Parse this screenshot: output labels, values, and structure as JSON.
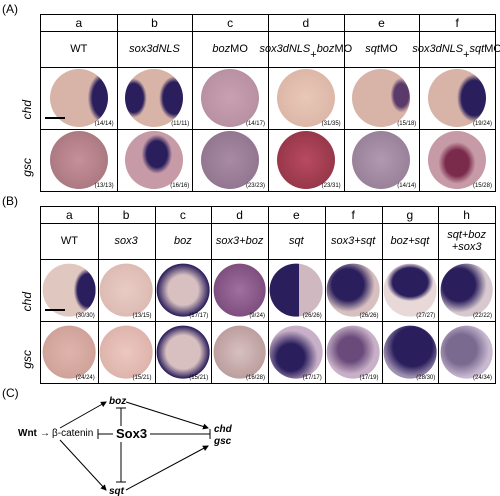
{
  "panel_labels": {
    "A": "(A)",
    "B": "(B)",
    "C": "(C)"
  },
  "panelA": {
    "letters": [
      "a",
      "b",
      "c",
      "d",
      "e",
      "f"
    ],
    "conditions": [
      {
        "parts": [
          {
            "t": "WT",
            "i": false
          }
        ]
      },
      {
        "parts": [
          {
            "t": "sox3dNLS",
            "i": true
          }
        ]
      },
      {
        "parts": [
          {
            "t": "boz",
            "i": true
          },
          {
            "t": "MO",
            "i": false
          }
        ]
      },
      {
        "parts": [
          {
            "t": "sox3dNLS",
            "i": true
          },
          {
            "t": "\n+",
            "i": false
          },
          {
            "t": "boz",
            "i": true
          },
          {
            "t": "MO",
            "i": false
          }
        ]
      },
      {
        "parts": [
          {
            "t": "sqt",
            "i": true
          },
          {
            "t": "MO",
            "i": false
          }
        ]
      },
      {
        "parts": [
          {
            "t": "sox3dNLS",
            "i": true
          },
          {
            "t": "\n+",
            "i": false
          },
          {
            "t": "sqt",
            "i": true
          },
          {
            "t": "MO",
            "i": false
          }
        ]
      }
    ],
    "rows": [
      {
        "label": "chd",
        "counts": [
          "(14/14)",
          "(11/11)",
          "(14/17)",
          "(31/35)",
          "(15/18)",
          "(19/24)"
        ]
      },
      {
        "label": "gsc",
        "counts": [
          "(13/13)",
          "(16/16)",
          "(23/23)",
          "(23/31)",
          "(14/14)",
          "(15/28)"
        ]
      }
    ]
  },
  "panelB": {
    "letters": [
      "a",
      "b",
      "c",
      "d",
      "e",
      "f",
      "g",
      "h"
    ],
    "conditions": [
      {
        "parts": [
          {
            "t": "WT",
            "i": false
          }
        ]
      },
      {
        "parts": [
          {
            "t": "sox3",
            "i": true
          }
        ]
      },
      {
        "parts": [
          {
            "t": "boz",
            "i": true
          }
        ]
      },
      {
        "parts": [
          {
            "t": "sox3+boz",
            "i": true
          }
        ]
      },
      {
        "parts": [
          {
            "t": "sqt",
            "i": true
          }
        ]
      },
      {
        "parts": [
          {
            "t": "sox3+sqt",
            "i": true
          }
        ]
      },
      {
        "parts": [
          {
            "t": "boz+sqt",
            "i": true
          }
        ]
      },
      {
        "parts": [
          {
            "t": "sqt+boz\n+sox3",
            "i": true
          }
        ]
      }
    ],
    "rows": [
      {
        "label": "chd",
        "counts": [
          "(30/30)",
          "(13/15)",
          "(17/17)",
          "(9/24)",
          "(26/26)",
          "(26/26)",
          "(27/27)",
          "(22/22)"
        ]
      },
      {
        "label": "gsc",
        "counts": [
          "(24/24)",
          "(15/21)",
          "(15/21)",
          "(16/28)",
          "(17/17)",
          "(17/19)",
          "(28/30)",
          "(24/34)"
        ]
      }
    ]
  },
  "panelC": {
    "wnt": "Wnt",
    "arrow": "→",
    "catenin": "β-catenin",
    "sox3": "Sox3",
    "boz": "boz",
    "sqt": "sqt",
    "chd": "chd",
    "gsc": "gsc"
  },
  "colors": {
    "stain": "#2a1e5c",
    "embryo_bg": "#d8b4a8",
    "gsc_bg": "#c69aa6"
  }
}
